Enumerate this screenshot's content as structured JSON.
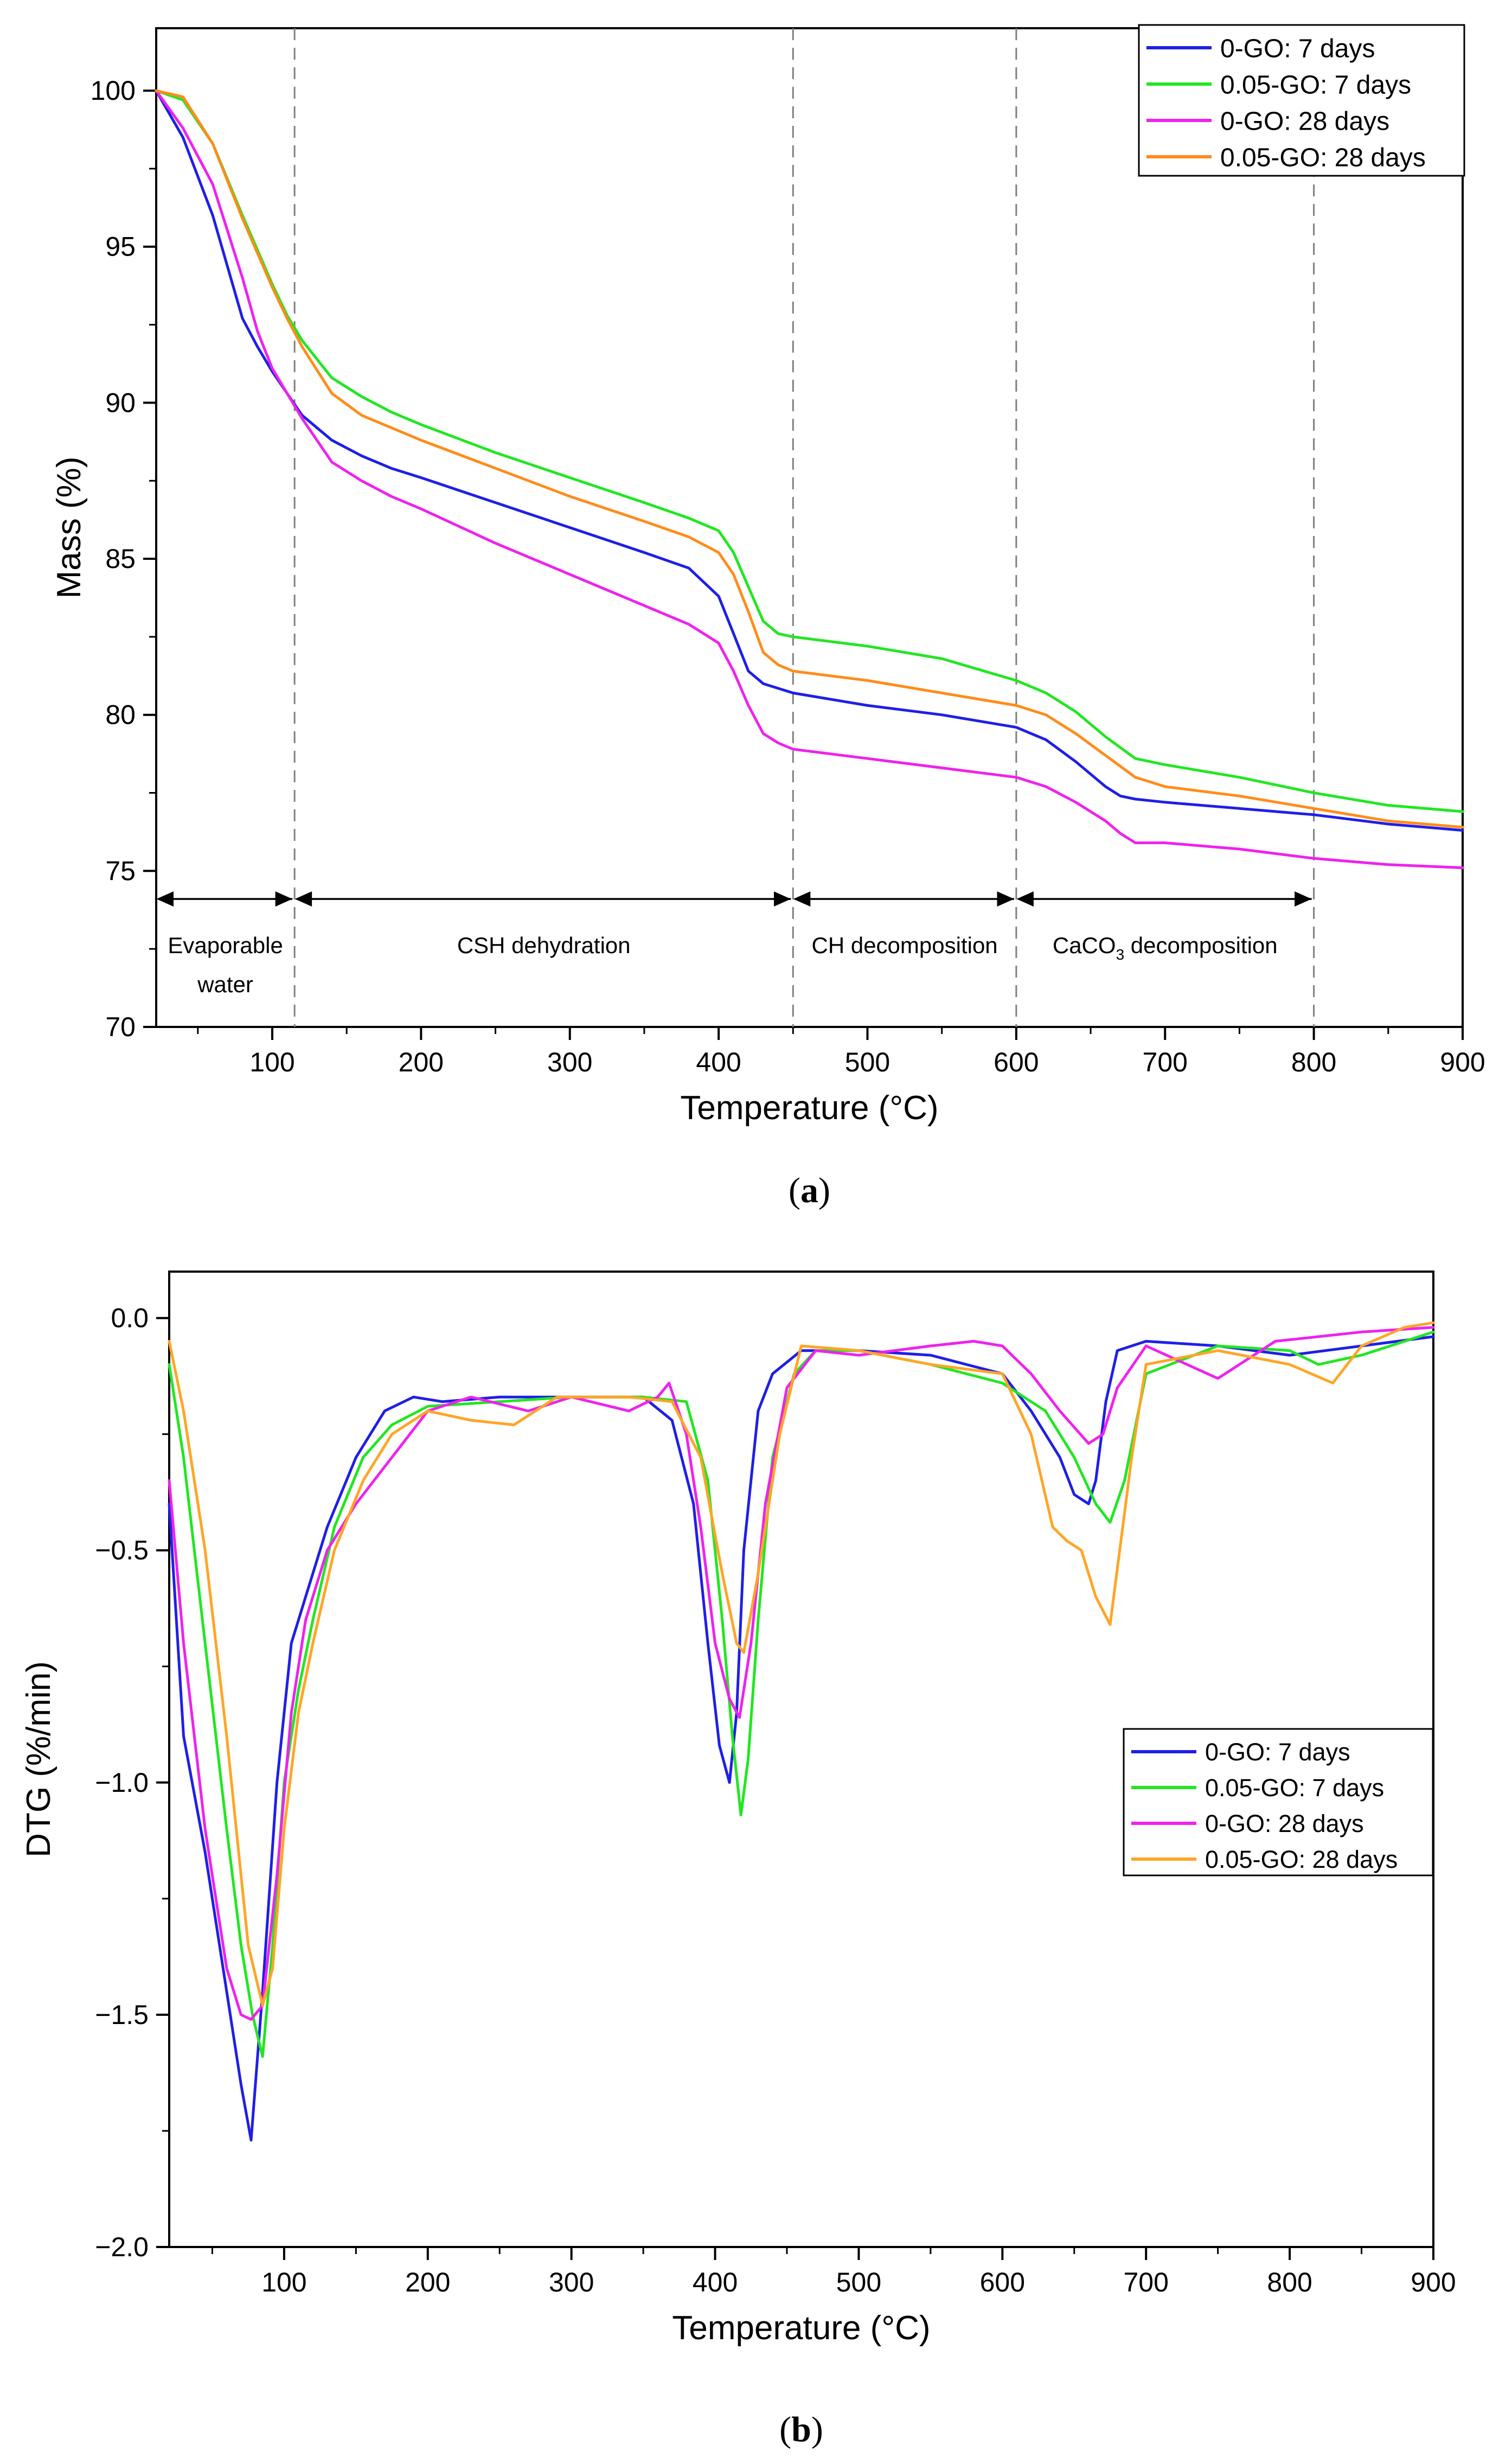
{
  "chart_data": [
    {
      "type": "line",
      "panel_label": "a",
      "xlabel": "Temperature (°C)",
      "ylabel": "Mass (%)",
      "xlim": [
        22,
        900
      ],
      "ylim": [
        70,
        102
      ],
      "xticks": [
        100,
        200,
        300,
        400,
        500,
        600,
        700,
        800,
        900
      ],
      "yticks": [
        70,
        75,
        80,
        85,
        90,
        95,
        100
      ],
      "xtick_labels": [
        "100",
        "200",
        "300",
        "400",
        "500",
        "600",
        "700",
        "800",
        "900"
      ],
      "ytick_labels": [
        "70",
        "75",
        "80",
        "85",
        "90",
        "95",
        "100"
      ],
      "legend_position": "top-right",
      "vlines": [
        115,
        450,
        600,
        800
      ],
      "region_arrows_y": 74.1,
      "regions": [
        {
          "from": 22,
          "to": 115,
          "label": "Evaporable water",
          "label_lines": [
            "Evaporable",
            "water"
          ]
        },
        {
          "from": 115,
          "to": 450,
          "label": "CSH dehydration",
          "label_lines": [
            "CSH dehydration"
          ]
        },
        {
          "from": 450,
          "to": 600,
          "label": "CH decomposition",
          "label_lines": [
            "CH decomposition"
          ]
        },
        {
          "from": 600,
          "to": 800,
          "label": "CaCO3 decomposition",
          "label_prefix": "CaCO",
          "label_sub": "3",
          "label_suffix": " decomposition"
        }
      ],
      "series": [
        {
          "name": "0-GO: 7 days",
          "color": "#1f1fe6",
          "x": [
            22,
            40,
            60,
            80,
            90,
            100,
            110,
            120,
            140,
            160,
            180,
            200,
            250,
            300,
            350,
            380,
            400,
            410,
            420,
            430,
            450,
            500,
            550,
            600,
            620,
            640,
            660,
            670,
            680,
            700,
            750,
            800,
            850,
            900
          ],
          "y": [
            100,
            98.5,
            96,
            92.7,
            91.8,
            91.0,
            90.3,
            89.6,
            88.8,
            88.3,
            87.9,
            87.6,
            86.8,
            86.0,
            85.2,
            84.7,
            83.8,
            82.6,
            81.4,
            81.0,
            80.7,
            80.3,
            80.0,
            79.6,
            79.2,
            78.5,
            77.7,
            77.4,
            77.3,
            77.2,
            77.0,
            76.8,
            76.5,
            76.3
          ]
        },
        {
          "name": "0.05-GO: 7 days",
          "color": "#22e622",
          "x": [
            22,
            40,
            60,
            80,
            90,
            100,
            110,
            120,
            140,
            160,
            180,
            200,
            250,
            300,
            350,
            380,
            400,
            410,
            420,
            430,
            440,
            450,
            500,
            550,
            600,
            620,
            640,
            660,
            680,
            700,
            750,
            800,
            850,
            900
          ],
          "y": [
            100,
            99.7,
            98.3,
            96.0,
            94.9,
            93.8,
            92.8,
            92.0,
            90.8,
            90.2,
            89.7,
            89.3,
            88.4,
            87.6,
            86.8,
            86.3,
            85.9,
            85.2,
            84.1,
            83.0,
            82.6,
            82.5,
            82.2,
            81.8,
            81.1,
            80.7,
            80.1,
            79.3,
            78.6,
            78.4,
            78.0,
            77.5,
            77.1,
            76.9
          ]
        },
        {
          "name": "0-GO: 28 days",
          "color": "#ee22ee",
          "x": [
            22,
            40,
            60,
            80,
            90,
            100,
            110,
            120,
            140,
            160,
            180,
            200,
            250,
            300,
            350,
            380,
            400,
            410,
            420,
            430,
            440,
            450,
            500,
            550,
            600,
            620,
            640,
            660,
            670,
            680,
            700,
            750,
            800,
            850,
            900
          ],
          "y": [
            100,
            98.8,
            97,
            94.0,
            92.3,
            91.1,
            90.3,
            89.5,
            88.1,
            87.5,
            87.0,
            86.6,
            85.5,
            84.5,
            83.5,
            82.9,
            82.3,
            81.4,
            80.3,
            79.4,
            79.1,
            78.9,
            78.6,
            78.3,
            78.0,
            77.7,
            77.2,
            76.6,
            76.2,
            75.9,
            75.9,
            75.7,
            75.4,
            75.2,
            75.1
          ]
        },
        {
          "name": "0.05-GO: 28 days",
          "color": "#ff8c1a",
          "x": [
            22,
            40,
            60,
            80,
            90,
            100,
            110,
            120,
            140,
            160,
            180,
            200,
            250,
            300,
            350,
            380,
            400,
            410,
            420,
            430,
            440,
            450,
            500,
            550,
            600,
            620,
            640,
            660,
            680,
            700,
            750,
            800,
            850,
            900
          ],
          "y": [
            100,
            99.8,
            98.3,
            95.9,
            94.8,
            93.7,
            92.7,
            91.8,
            90.3,
            89.6,
            89.2,
            88.8,
            87.9,
            87.0,
            86.2,
            85.7,
            85.2,
            84.5,
            83.3,
            82.0,
            81.6,
            81.4,
            81.1,
            80.7,
            80.3,
            80.0,
            79.4,
            78.7,
            78.0,
            77.7,
            77.4,
            77.0,
            76.6,
            76.4
          ]
        }
      ]
    },
    {
      "type": "line",
      "panel_label": "b",
      "xlabel": "Temperature (°C)",
      "ylabel": "DTG (%/min)",
      "xlim": [
        20,
        900
      ],
      "ylim": [
        -2.0,
        0.1
      ],
      "xticks": [
        100,
        200,
        300,
        400,
        500,
        600,
        700,
        800,
        900
      ],
      "yticks": [
        -2.0,
        -1.5,
        -1.0,
        -0.5,
        0.0
      ],
      "xtick_labels": [
        "100",
        "200",
        "300",
        "400",
        "500",
        "600",
        "700",
        "800",
        "900"
      ],
      "ytick_labels": [
        "−2.0",
        "−1.5",
        "−1.0",
        "−0.5",
        "0.0"
      ],
      "legend_position": "center-right",
      "series": [
        {
          "name": "0-GO: 7 days",
          "color": "#1f1fe6",
          "x": [
            20,
            30,
            45,
            60,
            70,
            77,
            85,
            95,
            105,
            115,
            130,
            150,
            170,
            190,
            210,
            250,
            300,
            350,
            370,
            385,
            395,
            403,
            410,
            415,
            420,
            430,
            440,
            460,
            500,
            550,
            600,
            620,
            640,
            650,
            660,
            665,
            672,
            680,
            700,
            750,
            800,
            850,
            900
          ],
          "y": [
            -0.4,
            -0.9,
            -1.15,
            -1.45,
            -1.65,
            -1.77,
            -1.45,
            -1.0,
            -0.7,
            -0.6,
            -0.45,
            -0.3,
            -0.2,
            -0.17,
            -0.18,
            -0.17,
            -0.17,
            -0.17,
            -0.22,
            -0.4,
            -0.7,
            -0.92,
            -1.0,
            -0.85,
            -0.5,
            -0.2,
            -0.12,
            -0.07,
            -0.07,
            -0.08,
            -0.12,
            -0.2,
            -0.3,
            -0.38,
            -0.4,
            -0.35,
            -0.18,
            -0.07,
            -0.05,
            -0.06,
            -0.08,
            -0.06,
            -0.04
          ]
        },
        {
          "name": "0.05-GO: 7 days",
          "color": "#22e622",
          "x": [
            20,
            30,
            45,
            60,
            70,
            78,
            85,
            92,
            100,
            110,
            120,
            135,
            155,
            175,
            200,
            250,
            300,
            350,
            380,
            395,
            405,
            412,
            418,
            423,
            430,
            440,
            455,
            470,
            500,
            550,
            600,
            630,
            650,
            665,
            675,
            685,
            700,
            750,
            800,
            820,
            850,
            900
          ],
          "y": [
            -0.1,
            -0.3,
            -0.7,
            -1.1,
            -1.35,
            -1.5,
            -1.59,
            -1.35,
            -1.0,
            -0.8,
            -0.65,
            -0.45,
            -0.3,
            -0.23,
            -0.19,
            -0.18,
            -0.17,
            -0.17,
            -0.18,
            -0.35,
            -0.65,
            -0.9,
            -1.07,
            -0.95,
            -0.65,
            -0.3,
            -0.12,
            -0.07,
            -0.07,
            -0.1,
            -0.14,
            -0.2,
            -0.3,
            -0.4,
            -0.44,
            -0.35,
            -0.12,
            -0.06,
            -0.07,
            -0.1,
            -0.08,
            -0.03
          ]
        },
        {
          "name": "0-GO: 28 days",
          "color": "#ee22ee",
          "x": [
            20,
            30,
            45,
            60,
            70,
            77,
            85,
            95,
            105,
            115,
            130,
            150,
            175,
            200,
            230,
            270,
            300,
            340,
            360,
            368,
            380,
            390,
            400,
            410,
            417,
            425,
            435,
            450,
            470,
            500,
            550,
            580,
            600,
            620,
            640,
            660,
            670,
            680,
            700,
            750,
            790,
            820,
            850,
            900
          ],
          "y": [
            -0.35,
            -0.7,
            -1.1,
            -1.4,
            -1.5,
            -1.51,
            -1.48,
            -1.2,
            -0.85,
            -0.65,
            -0.5,
            -0.4,
            -0.3,
            -0.2,
            -0.17,
            -0.2,
            -0.17,
            -0.2,
            -0.17,
            -0.14,
            -0.25,
            -0.45,
            -0.7,
            -0.82,
            -0.86,
            -0.7,
            -0.4,
            -0.15,
            -0.07,
            -0.08,
            -0.06,
            -0.05,
            -0.06,
            -0.12,
            -0.2,
            -0.27,
            -0.25,
            -0.15,
            -0.06,
            -0.13,
            -0.05,
            -0.04,
            -0.03,
            -0.02
          ]
        },
        {
          "name": "0.05-GO: 28 days",
          "color": "#ffa526",
          "x": [
            20,
            30,
            45,
            60,
            75,
            85,
            92,
            100,
            110,
            120,
            135,
            155,
            175,
            200,
            230,
            260,
            290,
            340,
            370,
            390,
            405,
            415,
            420,
            430,
            445,
            460,
            500,
            550,
            600,
            620,
            635,
            645,
            655,
            665,
            675,
            690,
            700,
            750,
            800,
            830,
            850,
            880,
            900
          ],
          "y": [
            -0.05,
            -0.2,
            -0.5,
            -0.9,
            -1.35,
            -1.48,
            -1.4,
            -1.1,
            -0.85,
            -0.7,
            -0.5,
            -0.35,
            -0.25,
            -0.2,
            -0.22,
            -0.23,
            -0.17,
            -0.17,
            -0.18,
            -0.3,
            -0.55,
            -0.7,
            -0.72,
            -0.55,
            -0.25,
            -0.06,
            -0.07,
            -0.1,
            -0.12,
            -0.25,
            -0.45,
            -0.48,
            -0.5,
            -0.6,
            -0.66,
            -0.3,
            -0.1,
            -0.07,
            -0.1,
            -0.14,
            -0.06,
            -0.02,
            -0.01
          ]
        }
      ]
    }
  ]
}
